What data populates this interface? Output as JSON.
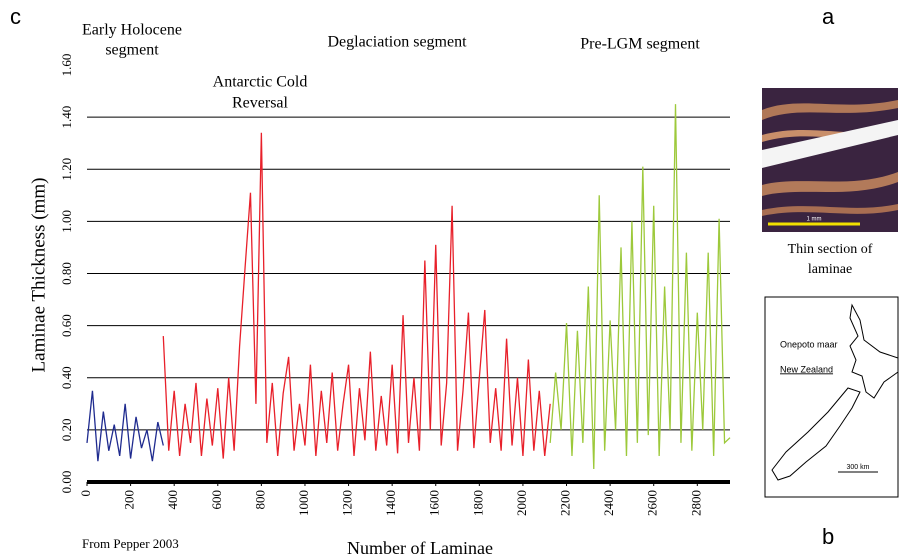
{
  "chart_data": {
    "type": "line",
    "panel_labels": [
      "c",
      "a",
      "b"
    ],
    "annotations": [
      "Early Holocene",
      "segment",
      "Deglaciation segment",
      "Pre-LGM segment",
      "Antarctic Cold",
      "Reversal"
    ],
    "xlabel": "Number of Laminae",
    "ylabel": "Laminae Thickness (mm)",
    "source": "From Pepper 2003",
    "inset_caption": [
      "Thin section of",
      "laminae"
    ],
    "map_labels": [
      "Onepoto maar",
      "New Zealand",
      "300 km"
    ],
    "photo_scale": "1 mm",
    "xlim": [
      0,
      2950
    ],
    "ylim": [
      0,
      1.6
    ],
    "xticks": [
      0,
      200,
      400,
      600,
      800,
      1000,
      1200,
      1400,
      1600,
      1800,
      2000,
      2200,
      2400,
      2600,
      2800
    ],
    "yticks": [
      {
        "value": 0,
        "label": "0.00"
      },
      {
        "value": 0.2,
        "label": "0.20"
      },
      {
        "value": 0.4,
        "label": "0.40"
      },
      {
        "value": 0.6,
        "label": "0.60"
      },
      {
        "value": 0.8,
        "label": "0.80"
      },
      {
        "value": 1.0,
        "label": "1.00"
      },
      {
        "value": 1.2,
        "label": "1.20"
      },
      {
        "value": 1.4,
        "label": "1.40"
      },
      {
        "value": 1.6,
        "label": "1.60"
      }
    ],
    "grid": true,
    "series": [
      {
        "color": "#1f2b8f",
        "x": [
          0,
          25,
          50,
          75,
          100,
          125,
          150,
          175,
          200,
          225,
          250,
          275,
          300,
          325,
          350
        ],
        "values": [
          0.15,
          0.35,
          0.08,
          0.27,
          0.12,
          0.22,
          0.1,
          0.3,
          0.09,
          0.25,
          0.13,
          0.2,
          0.08,
          0.23,
          0.14
        ]
      },
      {
        "color": "#e8202a",
        "x": [
          350,
          375,
          400,
          425,
          450,
          475,
          500,
          525,
          550,
          575,
          600,
          625,
          650,
          675,
          700,
          725,
          750,
          775,
          800,
          825,
          850,
          875,
          900,
          925,
          950,
          975,
          1000,
          1025,
          1050,
          1075,
          1100,
          1125,
          1150,
          1175,
          1200,
          1225,
          1250,
          1275,
          1300,
          1325,
          1350,
          1375,
          1400,
          1425,
          1450,
          1475,
          1500,
          1525,
          1550,
          1575,
          1600,
          1625,
          1650,
          1675,
          1700,
          1725,
          1750,
          1775,
          1800,
          1825,
          1850,
          1875,
          1900,
          1925,
          1950,
          1975,
          2000,
          2025,
          2050,
          2075,
          2100,
          2125
        ],
        "values": [
          0.56,
          0.12,
          0.35,
          0.1,
          0.3,
          0.15,
          0.38,
          0.1,
          0.32,
          0.14,
          0.36,
          0.09,
          0.4,
          0.12,
          0.52,
          0.82,
          1.11,
          0.3,
          1.34,
          0.15,
          0.38,
          0.1,
          0.34,
          0.48,
          0.12,
          0.3,
          0.14,
          0.45,
          0.1,
          0.35,
          0.15,
          0.42,
          0.12,
          0.3,
          0.45,
          0.1,
          0.36,
          0.16,
          0.5,
          0.12,
          0.33,
          0.14,
          0.45,
          0.11,
          0.64,
          0.15,
          0.4,
          0.12,
          0.85,
          0.2,
          0.91,
          0.14,
          0.38,
          1.06,
          0.12,
          0.35,
          0.65,
          0.13,
          0.4,
          0.66,
          0.15,
          0.36,
          0.12,
          0.55,
          0.14,
          0.4,
          0.1,
          0.47,
          0.12,
          0.35,
          0.1,
          0.3
        ]
      },
      {
        "color": "#9dc93b",
        "x": [
          2125,
          2150,
          2175,
          2200,
          2225,
          2250,
          2275,
          2300,
          2325,
          2350,
          2375,
          2400,
          2425,
          2450,
          2475,
          2500,
          2525,
          2550,
          2575,
          2600,
          2625,
          2650,
          2675,
          2700,
          2725,
          2750,
          2775,
          2800,
          2825,
          2850,
          2875,
          2900,
          2925,
          2950
        ],
        "values": [
          0.15,
          0.42,
          0.2,
          0.61,
          0.1,
          0.58,
          0.15,
          0.75,
          0.05,
          1.1,
          0.12,
          0.62,
          0.2,
          0.9,
          0.1,
          1.0,
          0.15,
          1.21,
          0.18,
          1.06,
          0.1,
          0.75,
          0.2,
          1.45,
          0.15,
          0.88,
          0.12,
          0.65,
          0.2,
          0.88,
          0.1,
          1.01,
          0.15,
          0.17
        ]
      }
    ]
  }
}
